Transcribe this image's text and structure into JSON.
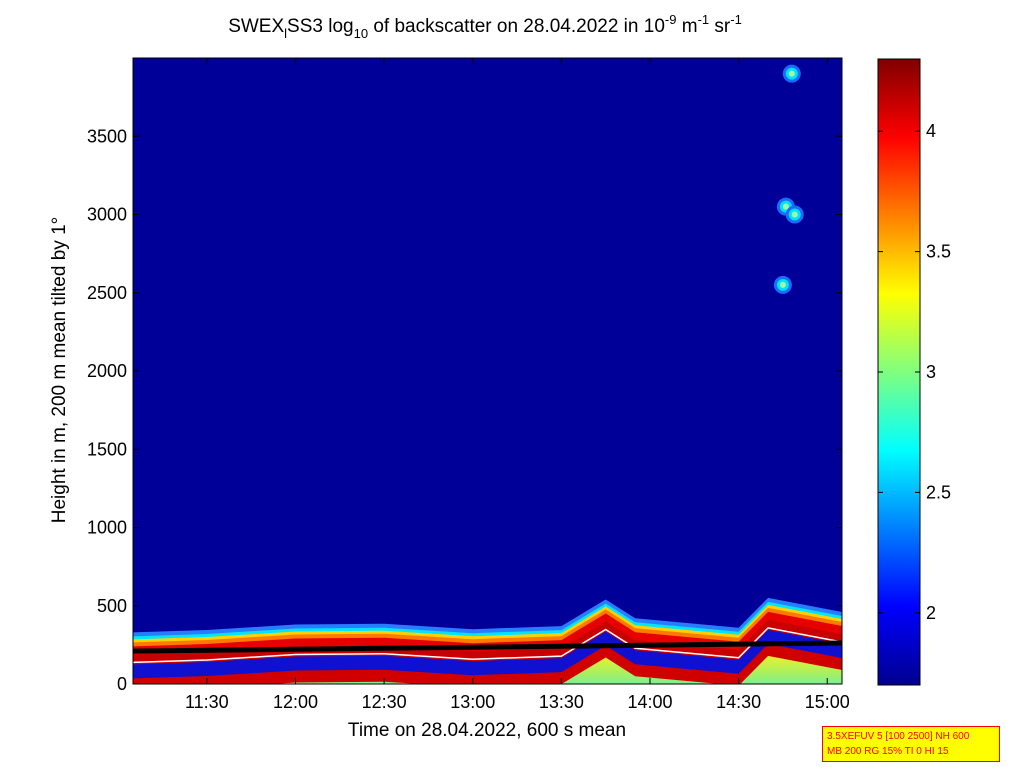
{
  "chart_data": {
    "type": "heatmap",
    "title": {
      "part1": "SWEX",
      "sub1": "l",
      "part2": "SS3 log",
      "sub2": "10",
      "part3": " of backscatter on 28.04.2022 in 10",
      "sup1": "-9",
      "part4": " m",
      "sup2": "-1",
      "part5": " sr",
      "sup3": "-1"
    },
    "xlabel": "Time on 28.04.2022, 600 s mean",
    "ylabel": "Height in m, 200 m mean tilted by 1°",
    "x_range": [
      "11:05",
      "15:05"
    ],
    "y_range": [
      0,
      4000
    ],
    "x_ticks": [
      "11:30",
      "12:00",
      "12:30",
      "13:00",
      "13:30",
      "14:00",
      "14:30",
      "15:00"
    ],
    "y_ticks": [
      0,
      500,
      1000,
      1500,
      2000,
      2500,
      3000,
      3500
    ],
    "colorbar": {
      "range": [
        1.7,
        4.3
      ],
      "ticks": [
        2,
        2.5,
        3,
        3.5,
        4
      ],
      "tick_labels": [
        "2",
        "2.5",
        "3",
        "3.5",
        "4"
      ],
      "colormap": "jet"
    },
    "boundary_layer_top_m": [
      {
        "time": "11:05",
        "height": 330
      },
      {
        "time": "11:30",
        "height": 345
      },
      {
        "time": "12:00",
        "height": 380
      },
      {
        "time": "12:30",
        "height": 385
      },
      {
        "time": "13:00",
        "height": 350
      },
      {
        "time": "13:30",
        "height": 370
      },
      {
        "time": "13:45",
        "height": 540
      },
      {
        "time": "13:55",
        "height": 420
      },
      {
        "time": "14:30",
        "height": 360
      },
      {
        "time": "14:40",
        "height": 550
      },
      {
        "time": "15:05",
        "height": 460
      }
    ],
    "clouds": [
      {
        "time": "14:48",
        "height": 3900
      },
      {
        "time": "14:46",
        "height": 3050
      },
      {
        "time": "14:49",
        "height": 3000
      },
      {
        "time": "14:45",
        "height": 2550
      }
    ]
  },
  "info_box": {
    "line1": "3.5XEFUV 5 [100 2500] NH 600",
    "line2": "MB 200 RG 15% TI 0 HI 15"
  }
}
